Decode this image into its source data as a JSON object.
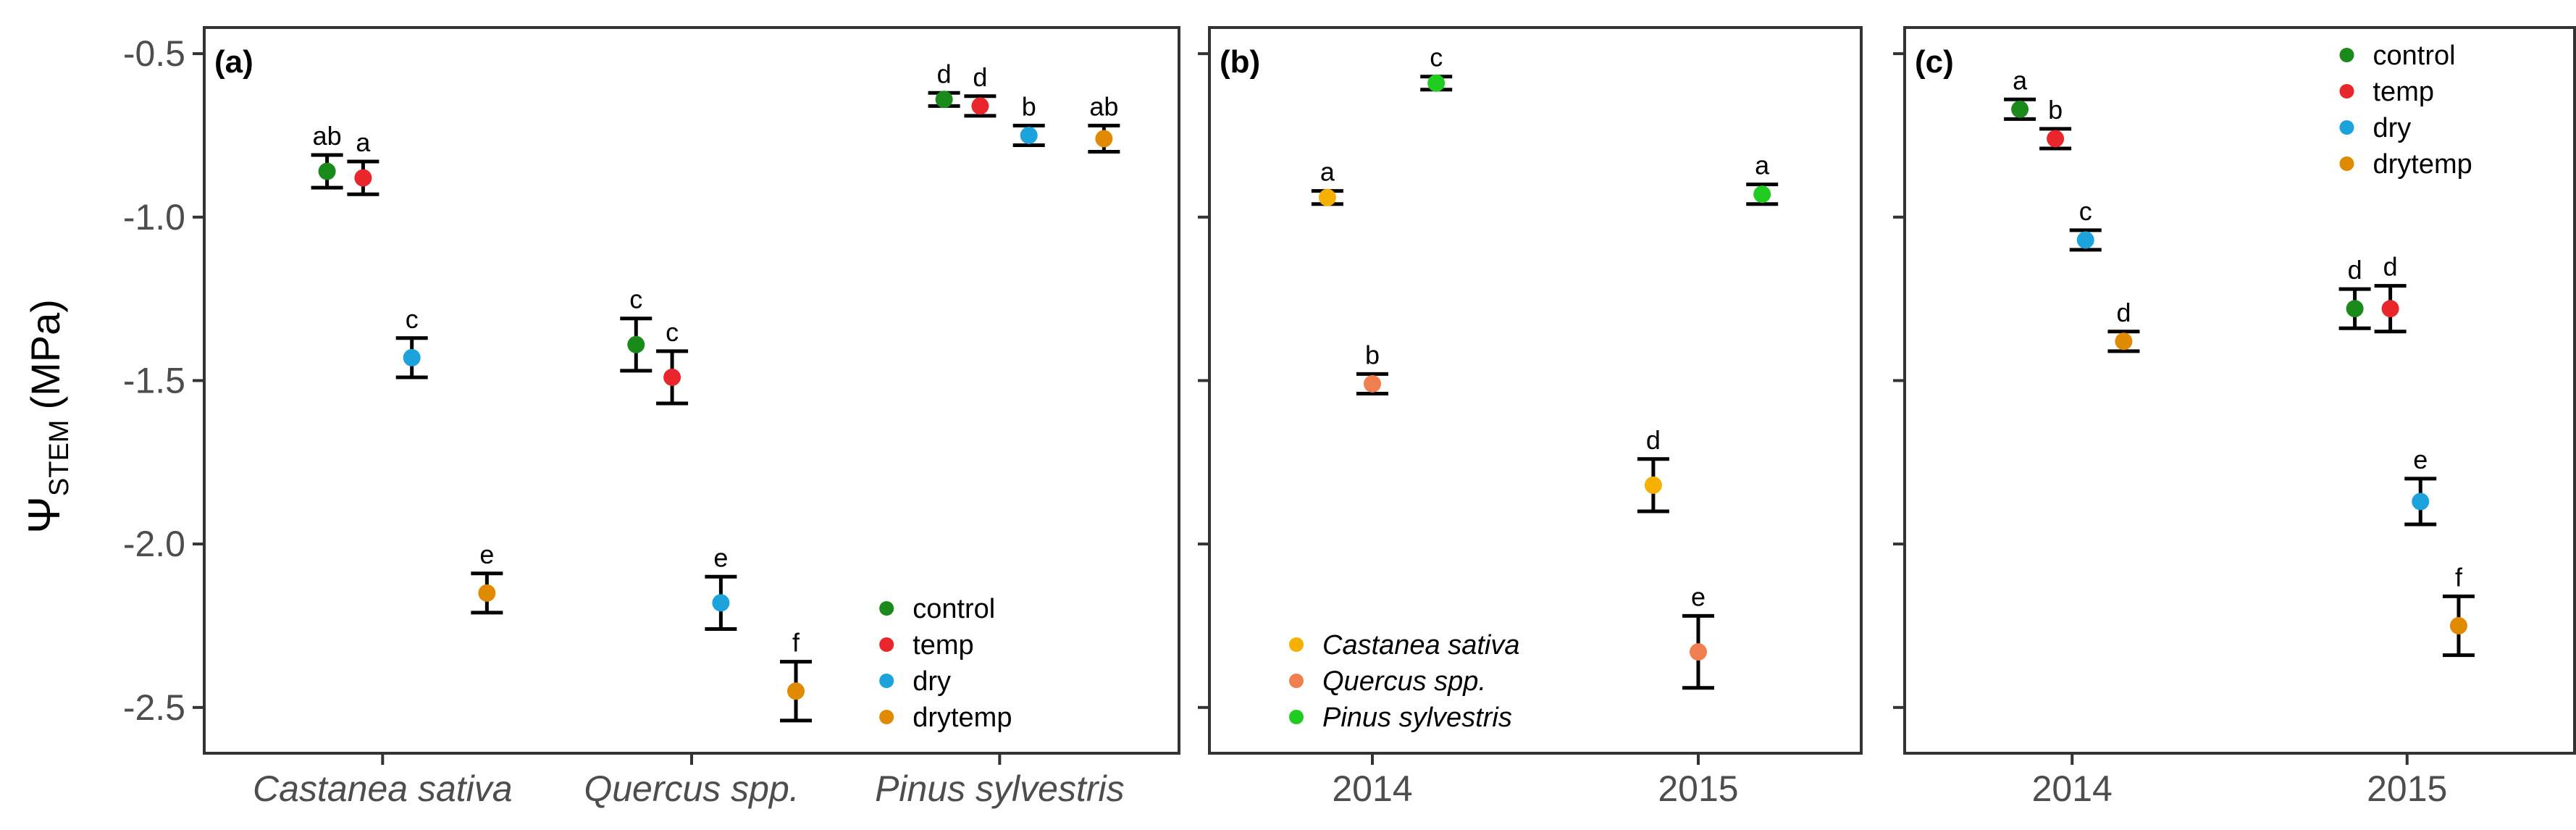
{
  "colors": {
    "control": "#1a8a1a",
    "temp": "#e8262b",
    "dry": "#1ca3dc",
    "drytemp": "#e08a00",
    "castanea": "#f5b000",
    "quercus": "#f07f4f",
    "pinus": "#1fcc1f"
  },
  "ylabel": {
    "psi": "Ψ",
    "sub": "STEM",
    "unit": "(MPa)"
  },
  "chart_data": [
    {
      "type": "scatter",
      "panel": "(a)",
      "ylim": [
        -2.64,
        -0.42
      ],
      "yticks": [
        -0.5,
        -1.0,
        -1.5,
        -2.0,
        -2.5
      ],
      "ytick_labels": [
        "-0.5",
        "-1.0",
        "-1.5",
        "-2.0",
        "-2.5"
      ],
      "categories": [
        "Castanea sativa",
        "Quercus spp.",
        "Pinus sylvestris"
      ],
      "category_italic": true,
      "series": [
        {
          "name": "control",
          "color_key": "control",
          "values": [
            -0.86,
            -1.39,
            -0.64
          ],
          "err": [
            0.05,
            0.08,
            0.02
          ],
          "letters": [
            "ab",
            "c",
            "d"
          ]
        },
        {
          "name": "temp",
          "color_key": "temp",
          "values": [
            -0.88,
            -1.49,
            -0.66
          ],
          "err": [
            0.05,
            0.08,
            0.03
          ],
          "letters": [
            "a",
            "c",
            "d"
          ]
        },
        {
          "name": "dry",
          "color_key": "dry",
          "values": [
            -1.43,
            -2.18,
            -0.75
          ],
          "err": [
            0.06,
            0.08,
            0.03
          ],
          "letters": [
            "c",
            "e",
            "b"
          ]
        },
        {
          "name": "drytemp",
          "color_key": "drytemp",
          "values": [
            -2.15,
            -2.45,
            -0.76
          ],
          "err": [
            0.06,
            0.09,
            0.04
          ],
          "letters": [
            "e",
            "f",
            "ab"
          ]
        }
      ],
      "legend": {
        "placement": "bottom-right",
        "entries": [
          "control",
          "temp",
          "dry",
          "drytemp"
        ],
        "italic": false
      }
    },
    {
      "type": "scatter",
      "panel": "(b)",
      "ylim": [
        -2.64,
        -0.42
      ],
      "yticks": [
        -0.5,
        -1.0,
        -1.5,
        -2.0,
        -2.5
      ],
      "categories": [
        "2014",
        "2015"
      ],
      "category_italic": false,
      "series": [
        {
          "name": "Castanea sativa",
          "color_key": "castanea",
          "values": [
            -0.94,
            -1.82
          ],
          "err": [
            0.02,
            0.08
          ],
          "letters": [
            "a",
            "d"
          ]
        },
        {
          "name": "Quercus spp.",
          "color_key": "quercus",
          "values": [
            -1.51,
            -2.33
          ],
          "err": [
            0.03,
            0.11
          ],
          "letters": [
            "b",
            "e"
          ]
        },
        {
          "name": "Pinus sylvestris",
          "color_key": "pinus",
          "values": [
            -0.59,
            -0.93
          ],
          "err": [
            0.02,
            0.03
          ],
          "letters": [
            "c",
            "a"
          ]
        }
      ],
      "legend": {
        "placement": "bottom-left",
        "entries": [
          "Castanea sativa",
          "Quercus spp.",
          "Pinus sylvestris"
        ],
        "italic": true
      }
    },
    {
      "type": "scatter",
      "panel": "(c)",
      "ylim": [
        -2.64,
        -0.42
      ],
      "yticks": [
        -0.5,
        -1.0,
        -1.5,
        -2.0,
        -2.5
      ],
      "categories": [
        "2014",
        "2015"
      ],
      "category_italic": false,
      "series": [
        {
          "name": "control",
          "color_key": "control",
          "values": [
            -0.67,
            -1.28
          ],
          "err": [
            0.03,
            0.06
          ],
          "letters": [
            "a",
            "d"
          ]
        },
        {
          "name": "temp",
          "color_key": "temp",
          "values": [
            -0.76,
            -1.28
          ],
          "err": [
            0.03,
            0.07
          ],
          "letters": [
            "b",
            "d"
          ]
        },
        {
          "name": "dry",
          "color_key": "dry",
          "values": [
            -1.07,
            -1.87
          ],
          "err": [
            0.03,
            0.07
          ],
          "letters": [
            "c",
            "e"
          ]
        },
        {
          "name": "drytemp",
          "color_key": "drytemp",
          "values": [
            -1.38,
            -2.25
          ],
          "err": [
            0.03,
            0.09
          ],
          "letters": [
            "d",
            "f"
          ]
        }
      ],
      "legend": {
        "placement": "top-right",
        "entries": [
          "control",
          "temp",
          "dry",
          "drytemp"
        ],
        "italic": false
      }
    }
  ]
}
